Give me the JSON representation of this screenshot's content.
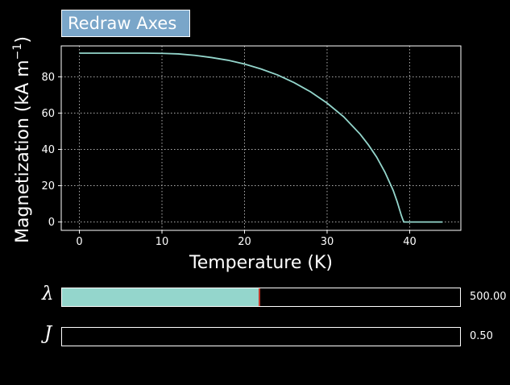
{
  "toolbar": {
    "redraw_label": "Redraw Axes"
  },
  "chart_data": {
    "type": "line",
    "xlabel": "Temperature (K)",
    "ylabel_main": "Magnetization (kA m",
    "ylabel_sup": "−1",
    "ylabel_end": ")",
    "xlim": [
      -2.2,
      46.2
    ],
    "ylim": [
      -4.6,
      97.0
    ],
    "xticks": [
      0,
      10,
      20,
      30,
      40
    ],
    "yticks": [
      0,
      20,
      40,
      60,
      80
    ],
    "grid": true,
    "series": [
      {
        "color": "#94d6cc",
        "x": [
          0,
          4,
          8,
          10,
          12,
          14,
          16,
          18,
          20,
          22,
          24,
          26,
          28,
          30,
          32,
          34,
          35,
          36,
          37,
          38,
          38.5,
          39,
          39.2,
          39.3,
          44
        ],
        "y": [
          93,
          93,
          93,
          92.9,
          92.6,
          91.8,
          90.6,
          89.1,
          87.0,
          84.3,
          81.0,
          76.8,
          71.7,
          65.5,
          58.0,
          48.4,
          42.5,
          35.8,
          27.5,
          17.5,
          11.0,
          3.5,
          1.0,
          0,
          0
        ]
      }
    ]
  },
  "sliders": [
    {
      "symbol": "λ",
      "value_label": "500.00",
      "fraction": 0.496
    },
    {
      "symbol": "J",
      "value_label": "0.50",
      "fraction": 0.0
    }
  ],
  "colors": {
    "line": "#94d6cc",
    "button": "#7aa6c9",
    "handle": "#c0392b"
  }
}
